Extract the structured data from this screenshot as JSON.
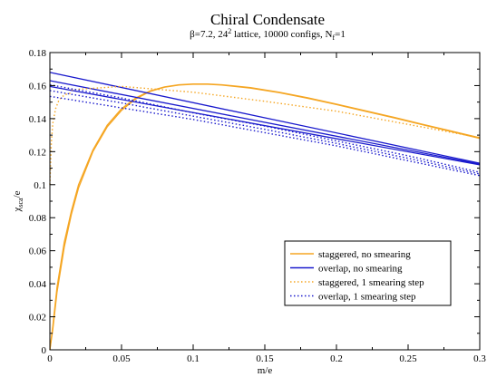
{
  "chart_data": {
    "type": "line",
    "title": "Chiral Condensate",
    "subtitle": {
      "beta": "β=7.2, 24",
      "beta_sup": "2",
      "rest": " lattice, 10000 configs, N",
      "nf_sub": "f",
      "nf_val": "=1"
    },
    "xlabel": "m/e",
    "ylabel": {
      "main": "χ",
      "sub": "sca",
      "rest": "/e"
    },
    "xlim": [
      0,
      0.3
    ],
    "ylim": [
      0,
      0.18
    ],
    "x_ticks": [
      0,
      0.05,
      0.1,
      0.15,
      0.2,
      0.25,
      0.3
    ],
    "x_tick_labels": [
      "0",
      "0.05",
      "0.1",
      "0.15",
      "0.2",
      "0.25",
      "0.3"
    ],
    "y_ticks": [
      0,
      0.02,
      0.04,
      0.06,
      0.08,
      0.1,
      0.12,
      0.14,
      0.16,
      0.18
    ],
    "y_tick_labels": [
      "0",
      "0.02",
      "0.04",
      "0.06",
      "0.08",
      "0.1",
      "0.12",
      "0.14",
      "0.16",
      "0.18"
    ],
    "grid": false,
    "legend_position": "bottom-right",
    "series": [
      {
        "name": "staggered, no smearing",
        "color": "#f5a623",
        "style": "solid",
        "curves": [
          {
            "x": [
              0,
              0.002,
              0.005,
              0.01,
              0.015,
              0.02,
              0.03,
              0.04,
              0.05,
              0.06,
              0.07,
              0.08,
              0.09,
              0.1,
              0.11,
              0.12,
              0.14,
              0.16,
              0.18,
              0.2,
              0.22,
              0.24,
              0.26,
              0.28,
              0.3
            ],
            "y": [
              0,
              0.012,
              0.035,
              0.062,
              0.082,
              0.098,
              0.12,
              0.135,
              0.145,
              0.152,
              0.1565,
              0.159,
              0.1603,
              0.1608,
              0.1608,
              0.1603,
              0.1585,
              0.1557,
              0.1523,
              0.1485,
              0.1445,
              0.1405,
              0.1363,
              0.1322,
              0.128
            ]
          },
          {
            "x": [
              0,
              0.002,
              0.005,
              0.01,
              0.015,
              0.02,
              0.03,
              0.04,
              0.05,
              0.06,
              0.07,
              0.08,
              0.09,
              0.1,
              0.11,
              0.12,
              0.14,
              0.16,
              0.18,
              0.2,
              0.22,
              0.24,
              0.26,
              0.28,
              0.3
            ],
            "y": [
              0,
              0.014,
              0.038,
              0.065,
              0.084,
              0.1,
              0.121,
              0.136,
              0.146,
              0.1525,
              0.1568,
              0.1592,
              0.1605,
              0.161,
              0.161,
              0.1605,
              0.1588,
              0.156,
              0.1526,
              0.1488,
              0.1448,
              0.1408,
              0.1366,
              0.1325,
              0.1284
            ]
          }
        ]
      },
      {
        "name": "overlap, no smearing",
        "color": "#1a1acd",
        "style": "solid",
        "curves": [
          {
            "x": [
              0,
              0.3
            ],
            "y": [
              0.168,
              0.113
            ]
          },
          {
            "x": [
              0,
              0.3
            ],
            "y": [
              0.163,
              0.1125
            ]
          },
          {
            "x": [
              0,
              0.3
            ],
            "y": [
              0.1595,
              0.112
            ]
          }
        ]
      },
      {
        "name": "staggered, 1 smearing step",
        "color": "#f5a623",
        "style": "dotted",
        "curves": [
          {
            "x": [
              0,
              0.001,
              0.002,
              0.004,
              0.006,
              0.008,
              0.01,
              0.012,
              0.015
            ],
            "y": [
              0.1,
              0.125,
              0.137,
              0.146,
              0.1505,
              0.1528,
              0.1542,
              0.155,
              0.1555
            ]
          },
          {
            "x": [
              0.015,
              0.05,
              0.1,
              0.15,
              0.2,
              0.25,
              0.3
            ],
            "y": [
              0.1575,
              0.1595,
              0.156,
              0.1505,
              0.1445,
              0.1365,
              0.1285
            ]
          }
        ]
      },
      {
        "name": "overlap, 1 smearing step",
        "color": "#1a1acd",
        "style": "dotted",
        "curves": [
          {
            "x": [
              0,
              0.05,
              0.1,
              0.15,
              0.2,
              0.25,
              0.3
            ],
            "y": [
              0.1605,
              0.1525,
              0.1435,
              0.1355,
              0.1265,
              0.1175,
              0.1075
            ]
          },
          {
            "x": [
              0,
              0.05,
              0.1,
              0.15,
              0.2,
              0.25,
              0.3
            ],
            "y": [
              0.157,
              0.1495,
              0.1415,
              0.1335,
              0.125,
              0.116,
              0.1065
            ]
          },
          {
            "x": [
              0,
              0.05,
              0.1,
              0.15,
              0.2,
              0.25,
              0.3
            ],
            "y": [
              0.1535,
              0.1465,
              0.1395,
              0.1315,
              0.1235,
              0.1145,
              0.1055
            ]
          }
        ]
      }
    ]
  }
}
